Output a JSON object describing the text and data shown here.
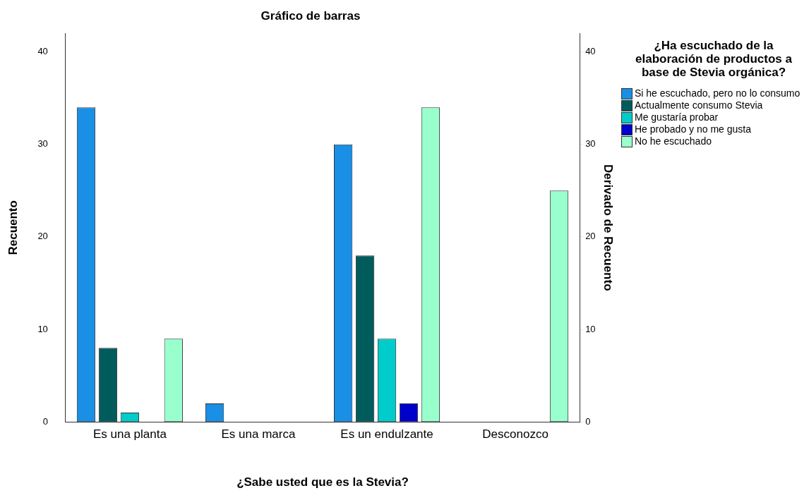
{
  "chart_data": {
    "type": "bar",
    "title": "Gráfico de barras",
    "xlabel": "¿Sabe usted que es la Stevia?",
    "ylabel": "Recuento",
    "y2label": "Derivado de Recuento",
    "legend_title": "¿Ha escuchado de la elaboración de productos a base de Stevia orgánica?",
    "categories": [
      "Es una planta",
      "Es una marca",
      "Es un endulzante",
      "Desconozco"
    ],
    "series": [
      {
        "name": "Si he escuchado, pero no lo consumo",
        "color": "#1a8fe6",
        "values": [
          34,
          2,
          30,
          null
        ]
      },
      {
        "name": "Actualmente consumo Stevia",
        "color": "#005c5c",
        "values": [
          8,
          null,
          18,
          null
        ]
      },
      {
        "name": "Me gustaría probar",
        "color": "#00cccc",
        "values": [
          1,
          null,
          9,
          null
        ]
      },
      {
        "name": "He probado y no me gusta",
        "color": "#0000cc",
        "values": [
          null,
          null,
          2,
          null
        ]
      },
      {
        "name": "No he escuchado",
        "color": "#99ffcc",
        "values": [
          9,
          null,
          34,
          25
        ]
      }
    ],
    "ylim": [
      0,
      42
    ],
    "yticks": [
      0,
      10,
      20,
      30,
      40
    ],
    "y2lim": [
      0,
      42
    ],
    "y2ticks": [
      0,
      10,
      20,
      30,
      40
    ],
    "grid": false,
    "legend": "right"
  }
}
